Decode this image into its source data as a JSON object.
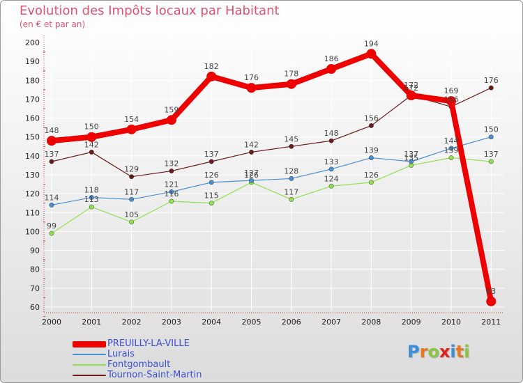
{
  "chart_data": {
    "type": "line",
    "title": "Evolution des Impôts locaux par Habitant",
    "subtitle": "(en € et par an)",
    "xlabel": "",
    "ylabel": "",
    "ylim": [
      60,
      200
    ],
    "yticks": [
      60,
      70,
      80,
      90,
      100,
      110,
      120,
      130,
      140,
      150,
      160,
      170,
      180,
      190,
      200
    ],
    "categories": [
      "2000",
      "2001",
      "2002",
      "2003",
      "2004",
      "2005",
      "2006",
      "2007",
      "2008",
      "2009",
      "2010",
      "2011"
    ],
    "grid": true,
    "legend_position": "bottom-left",
    "series": [
      {
        "name": "Tournon-Saint-Martin",
        "color": "#6b1a1a",
        "values": [
          137,
          142,
          129,
          132,
          137,
          142,
          145,
          148,
          156,
          172,
          166,
          176
        ]
      },
      {
        "name": "Fontgombault",
        "color": "#90e050",
        "values": [
          99,
          113,
          105,
          116,
          115,
          126,
          117,
          124,
          126,
          135,
          139,
          137
        ]
      },
      {
        "name": "Lurais",
        "color": "#4a90d0",
        "values": [
          114,
          118,
          117,
          121,
          126,
          127,
          128,
          133,
          139,
          137,
          144,
          150
        ]
      },
      {
        "name": "PREUILLY-LA-VILLE",
        "color": "#ee0000",
        "values": [
          148,
          150,
          154,
          159,
          182,
          176,
          178,
          186,
          194,
          172,
          169,
          63
        ]
      }
    ]
  },
  "legend": [
    {
      "label": "PREUILLY-LA-VILLE",
      "color": "#ee0000"
    },
    {
      "label": "Lurais",
      "color": "#4a90d0"
    },
    {
      "label": "Fontgombault",
      "color": "#90e050"
    },
    {
      "label": "Tournon-Saint-Martin",
      "color": "#6b1a1a"
    }
  ],
  "brand": {
    "letters": [
      {
        "ch": "P",
        "color": "#3a8fd8"
      },
      {
        "ch": "r",
        "color": "#e87722"
      },
      {
        "ch": "o",
        "color": "#8cc63f"
      },
      {
        "ch": "x",
        "color": "#e02020"
      },
      {
        "ch": "i",
        "color": "#3a8fd8"
      },
      {
        "ch": "t",
        "color": "#e87722"
      },
      {
        "ch": "i",
        "color": "#8cc63f"
      }
    ]
  }
}
